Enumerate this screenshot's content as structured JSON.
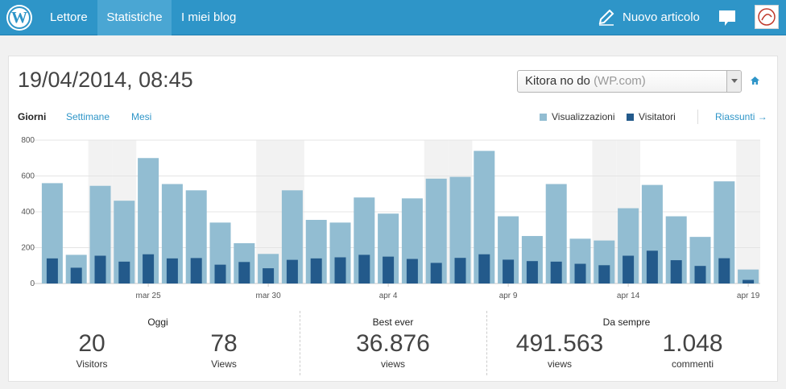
{
  "nav": {
    "reader": "Lettore",
    "stats": "Statistiche",
    "blogs": "I miei blog",
    "new_post": "Nuovo articolo"
  },
  "header": {
    "datetime": "19/04/2014, 08:45",
    "site_name": "Kitora no do",
    "site_host": "(WP.com)"
  },
  "period_tabs": [
    "Giorni",
    "Settimane",
    "Mesi"
  ],
  "legend": {
    "views": "Visualizzazioni",
    "visitors": "Visitatori",
    "summary": "Riassunti →"
  },
  "colors": {
    "brand": "#2e95c8",
    "views": "#92bdd2",
    "visitors": "#235a8b",
    "weekend_band": "#f2f2f2"
  },
  "chart_data": {
    "type": "bar",
    "categories": [
      "mar 21",
      "mar 22",
      "mar 23",
      "mar 24",
      "mar 25",
      "mar 26",
      "mar 27",
      "mar 28",
      "mar 29",
      "mar 30",
      "mar 31",
      "apr 1",
      "apr 2",
      "apr 3",
      "apr 4",
      "apr 5",
      "apr 6",
      "apr 7",
      "apr 8",
      "apr 9",
      "apr 10",
      "apr 11",
      "apr 12",
      "apr 13",
      "apr 14",
      "apr 15",
      "apr 16",
      "apr 17",
      "apr 18",
      "apr 19"
    ],
    "x_tick_labels": [
      "mar 25",
      "mar 30",
      "apr 4",
      "apr 9",
      "apr 14",
      "apr 19"
    ],
    "x_tick_index": [
      4,
      9,
      14,
      19,
      24,
      29
    ],
    "weekend_index": [
      2,
      3,
      9,
      10,
      16,
      17,
      23,
      24,
      29
    ],
    "series": [
      {
        "name": "Visualizzazioni",
        "values": [
          560,
          160,
          545,
          462,
          700,
          555,
          520,
          340,
          225,
          165,
          520,
          355,
          340,
          480,
          390,
          475,
          585,
          595,
          740,
          375,
          265,
          555,
          250,
          240,
          420,
          550,
          375,
          260,
          570,
          78
        ]
      },
      {
        "name": "Visitatori",
        "values": [
          140,
          88,
          155,
          122,
          163,
          140,
          142,
          105,
          120,
          85,
          132,
          140,
          146,
          160,
          150,
          137,
          115,
          143,
          163,
          133,
          125,
          122,
          110,
          102,
          155,
          183,
          130,
          98,
          141,
          20
        ]
      }
    ],
    "y_ticks": [
      0,
      200,
      400,
      600,
      800
    ],
    "ylim": [
      0,
      800
    ],
    "grid": true
  },
  "stats": {
    "today": {
      "title": "Oggi",
      "visitors_value": "20",
      "visitors_label": "Visitors",
      "views_value": "78",
      "views_label": "Views"
    },
    "best": {
      "title": "Best ever",
      "value": "36.876",
      "label": "views"
    },
    "alltime": {
      "title": "Da sempre",
      "views_value": "491.563",
      "views_label": "views",
      "comments_value": "1.048",
      "comments_label": "commenti"
    }
  }
}
